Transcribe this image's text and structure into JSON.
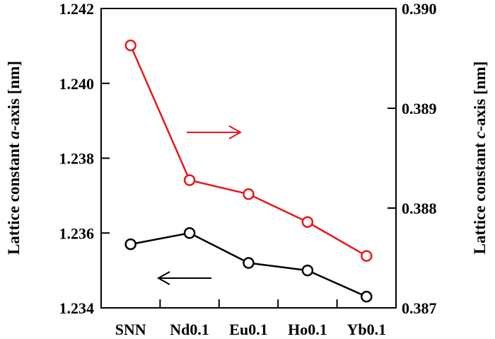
{
  "chart_data": {
    "type": "line",
    "categories": [
      "SNN",
      "Nd0.1",
      "Eu0.1",
      "Ho0.1",
      "Yb0.1"
    ],
    "ylabel_left": {
      "prefix": "Lattice constant ",
      "italic": "a",
      "suffix": "-axis [nm]"
    },
    "ylabel_right": {
      "prefix": "Lattice constant ",
      "italic": "c",
      "suffix": "-axis [nm]"
    },
    "ylim_left": [
      1.234,
      1.242
    ],
    "ylim_right": [
      0.387,
      0.39
    ],
    "yticks_left": [
      "1.234",
      "1.236",
      "1.238",
      "1.240",
      "1.242"
    ],
    "yticks_right": [
      "0.387",
      "0.388",
      "0.389",
      "0.390"
    ],
    "grid": false,
    "series": [
      {
        "axis": "left",
        "color": "#000000",
        "marker": "open-circle",
        "values": [
          1.2357,
          1.236,
          1.2352,
          1.235,
          1.2343
        ]
      },
      {
        "axis": "right",
        "color": "#e8171b",
        "marker": "open-circle",
        "values": [
          0.38963,
          0.38828,
          0.38814,
          0.38786,
          0.38752
        ]
      }
    ],
    "annotations": [
      {
        "type": "arrow",
        "direction": "right",
        "color": "#e8171b",
        "refers_to": "right axis"
      },
      {
        "type": "arrow",
        "direction": "left",
        "color": "#000000",
        "refers_to": "left axis"
      }
    ]
  }
}
